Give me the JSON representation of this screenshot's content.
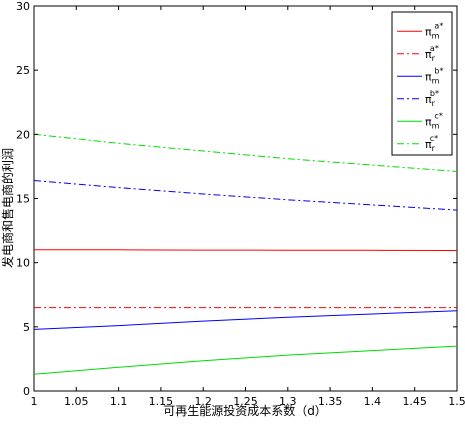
{
  "chart_data": {
    "type": "line",
    "xlabel": "可再生能源投资成本系数（d）",
    "ylabel": "发电商和售电商的利润",
    "xlim": [
      1,
      1.5
    ],
    "ylim": [
      0,
      30
    ],
    "xticks": [
      "1",
      "1.05",
      "1.1",
      "1.15",
      "1.2",
      "1.25",
      "1.3",
      "1.35",
      "1.4",
      "1.45",
      "1.5"
    ],
    "yticks": [
      "0",
      "5",
      "10",
      "15",
      "20",
      "25",
      "30"
    ],
    "grid": false,
    "legend_position": "top-right",
    "x": [
      1,
      1.1,
      1.2,
      1.3,
      1.4,
      1.5
    ],
    "series": [
      {
        "name": "m_a",
        "label_base": "π",
        "label_sub": "m",
        "label_sup": "a*",
        "color": "#ff0000",
        "dash": "solid",
        "values": [
          11.0,
          11.0,
          10.98,
          10.97,
          10.96,
          10.95
        ]
      },
      {
        "name": "r_a",
        "label_base": "π",
        "label_sub": "r",
        "label_sup": "a*",
        "color": "#ff0000",
        "dash": "dashdot",
        "values": [
          6.5,
          6.5,
          6.5,
          6.5,
          6.5,
          6.5
        ]
      },
      {
        "name": "m_b",
        "label_base": "π",
        "label_sub": "m",
        "label_sup": "b*",
        "color": "#0000ff",
        "dash": "solid",
        "values": [
          4.8,
          5.1,
          5.45,
          5.75,
          6.0,
          6.25
        ]
      },
      {
        "name": "r_b",
        "label_base": "π",
        "label_sub": "r",
        "label_sup": "b*",
        "color": "#0000ff",
        "dash": "dashdot",
        "values": [
          16.4,
          15.85,
          15.35,
          14.9,
          14.5,
          14.1
        ]
      },
      {
        "name": "m_c",
        "label_base": "π",
        "label_sub": "m",
        "label_sup": "c*",
        "color": "#00dd00",
        "dash": "solid",
        "values": [
          1.3,
          1.85,
          2.35,
          2.8,
          3.15,
          3.5
        ]
      },
      {
        "name": "r_c",
        "label_base": "π",
        "label_sub": "r",
        "label_sup": "c*",
        "color": "#00dd00",
        "dash": "dashdot",
        "values": [
          20.0,
          19.3,
          18.7,
          18.1,
          17.6,
          17.1
        ]
      }
    ]
  }
}
